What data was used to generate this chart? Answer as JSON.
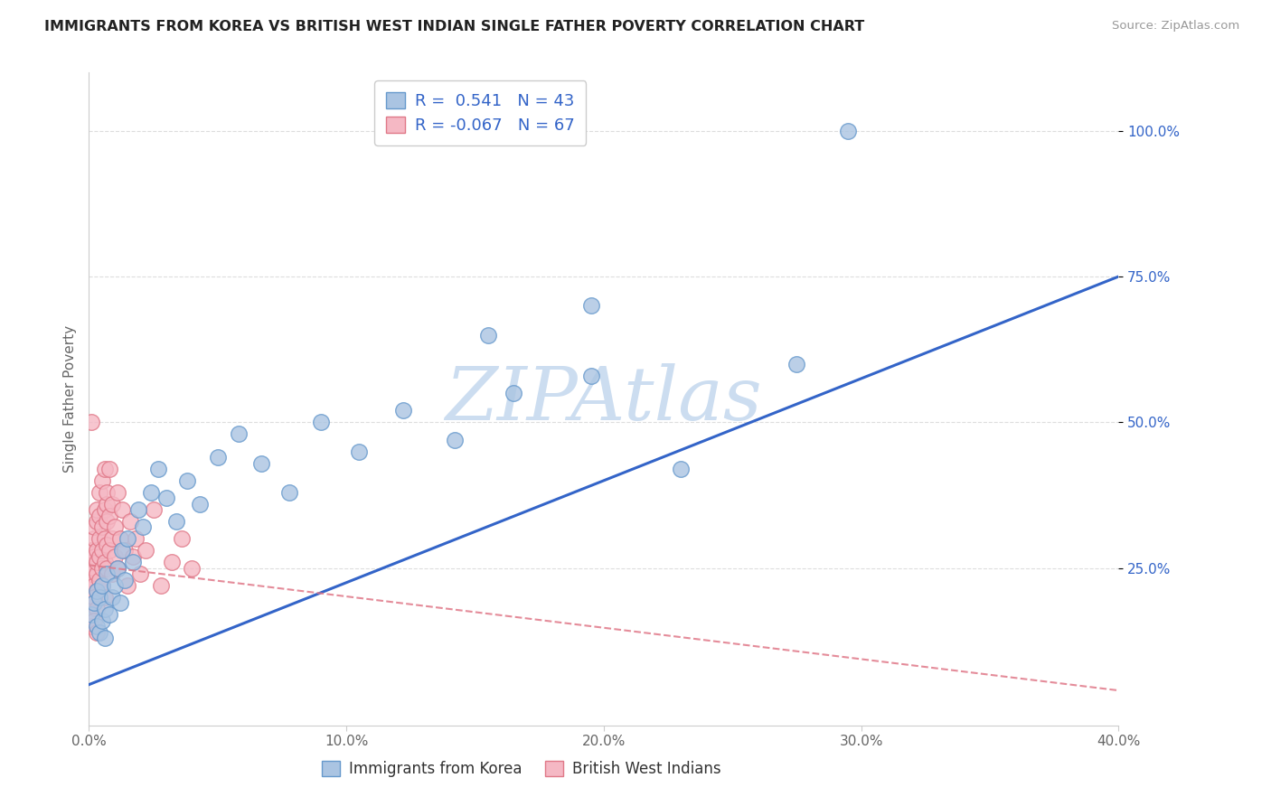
{
  "title": "IMMIGRANTS FROM KOREA VS BRITISH WEST INDIAN SINGLE FATHER POVERTY CORRELATION CHART",
  "source": "Source: ZipAtlas.com",
  "ylabel": "Single Father Poverty",
  "xlim": [
    0.0,
    0.4
  ],
  "ylim": [
    -0.02,
    1.1
  ],
  "xticks": [
    0.0,
    0.1,
    0.2,
    0.3,
    0.4
  ],
  "xtick_labels": [
    "0.0%",
    "10.0%",
    "20.0%",
    "30.0%",
    "40.0%"
  ],
  "ytick_positions": [
    0.25,
    0.5,
    0.75,
    1.0
  ],
  "ytick_labels": [
    "25.0%",
    "50.0%",
    "75.0%",
    "100.0%"
  ],
  "korea_color": "#aac4e2",
  "korea_edge": "#6699cc",
  "bwi_color": "#f5b8c4",
  "bwi_edge": "#e07888",
  "trend_korea_color": "#3364c8",
  "trend_bwi_color": "#e07888",
  "legend_r_color": "#3364c8",
  "watermark": "ZIPAtlas",
  "watermark_color": "#ccddf0",
  "legend_korea_r": "0.541",
  "legend_korea_n": "43",
  "legend_bwi_r": "-0.067",
  "legend_bwi_n": "67",
  "korea_trend_x0": 0.0,
  "korea_trend_y0": 0.05,
  "korea_trend_x1": 0.4,
  "korea_trend_y1": 0.75,
  "bwi_trend_x0": 0.0,
  "bwi_trend_y0": 0.255,
  "bwi_trend_x1": 0.4,
  "bwi_trend_y1": 0.04,
  "korea_x": [
    0.001,
    0.002,
    0.003,
    0.003,
    0.004,
    0.004,
    0.005,
    0.005,
    0.006,
    0.006,
    0.007,
    0.008,
    0.009,
    0.01,
    0.011,
    0.012,
    0.013,
    0.014,
    0.015,
    0.017,
    0.019,
    0.021,
    0.024,
    0.027,
    0.03,
    0.034,
    0.038,
    0.043,
    0.05,
    0.058,
    0.067,
    0.078,
    0.09,
    0.105,
    0.122,
    0.142,
    0.165,
    0.195,
    0.23,
    0.275,
    0.195,
    0.155,
    0.295
  ],
  "korea_y": [
    0.17,
    0.19,
    0.15,
    0.21,
    0.14,
    0.2,
    0.16,
    0.22,
    0.18,
    0.13,
    0.24,
    0.17,
    0.2,
    0.22,
    0.25,
    0.19,
    0.28,
    0.23,
    0.3,
    0.26,
    0.35,
    0.32,
    0.38,
    0.42,
    0.37,
    0.33,
    0.4,
    0.36,
    0.44,
    0.48,
    0.43,
    0.38,
    0.5,
    0.45,
    0.52,
    0.47,
    0.55,
    0.58,
    0.42,
    0.6,
    0.7,
    0.65,
    1.0
  ],
  "bwi_x": [
    0.0,
    0.001,
    0.001,
    0.001,
    0.001,
    0.002,
    0.002,
    0.002,
    0.002,
    0.002,
    0.002,
    0.003,
    0.003,
    0.003,
    0.003,
    0.003,
    0.003,
    0.004,
    0.004,
    0.004,
    0.004,
    0.004,
    0.005,
    0.005,
    0.005,
    0.005,
    0.005,
    0.006,
    0.006,
    0.006,
    0.006,
    0.006,
    0.007,
    0.007,
    0.007,
    0.007,
    0.007,
    0.008,
    0.008,
    0.008,
    0.009,
    0.009,
    0.009,
    0.01,
    0.01,
    0.011,
    0.011,
    0.012,
    0.013,
    0.014,
    0.015,
    0.016,
    0.017,
    0.018,
    0.02,
    0.022,
    0.025,
    0.028,
    0.032,
    0.036,
    0.04,
    0.001,
    0.002,
    0.003,
    0.001,
    0.002,
    0.003
  ],
  "bwi_y": [
    0.22,
    0.26,
    0.24,
    0.28,
    0.2,
    0.25,
    0.3,
    0.22,
    0.27,
    0.32,
    0.19,
    0.24,
    0.28,
    0.33,
    0.21,
    0.35,
    0.26,
    0.23,
    0.3,
    0.38,
    0.27,
    0.34,
    0.25,
    0.32,
    0.4,
    0.22,
    0.28,
    0.35,
    0.26,
    0.42,
    0.3,
    0.2,
    0.36,
    0.25,
    0.29,
    0.33,
    0.38,
    0.28,
    0.34,
    0.42,
    0.3,
    0.24,
    0.36,
    0.27,
    0.32,
    0.38,
    0.25,
    0.3,
    0.35,
    0.28,
    0.22,
    0.33,
    0.27,
    0.3,
    0.24,
    0.28,
    0.35,
    0.22,
    0.26,
    0.3,
    0.25,
    0.5,
    0.2,
    0.18,
    0.15,
    0.16,
    0.14
  ],
  "background_color": "#ffffff",
  "grid_color": "#dddddd"
}
